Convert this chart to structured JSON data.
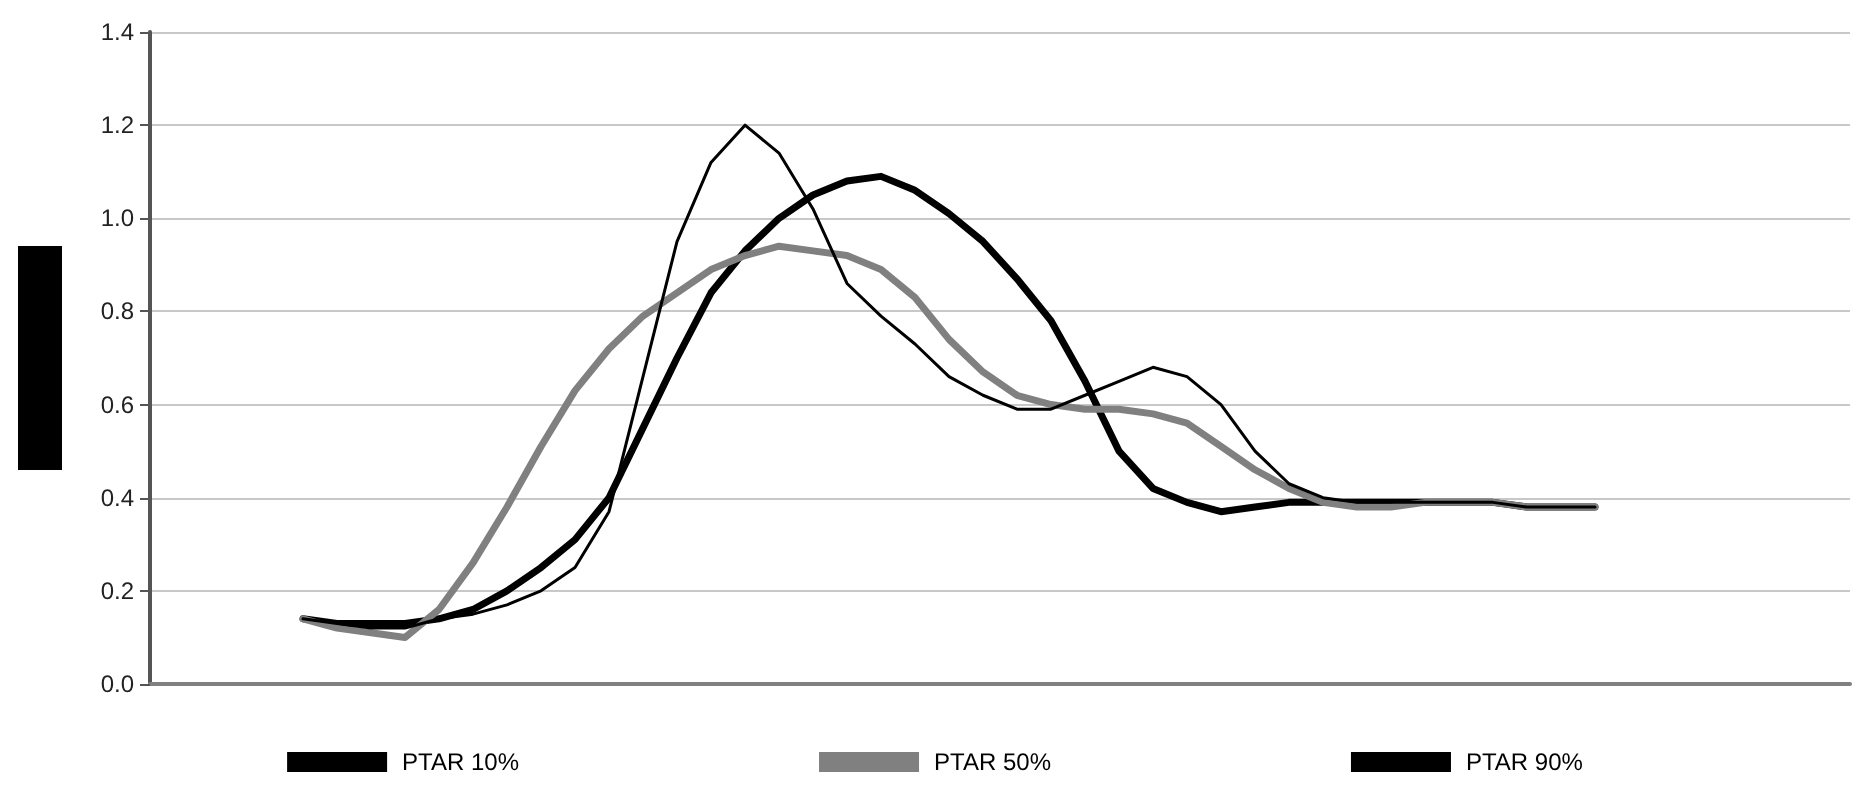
{
  "chart_data": {
    "type": "line",
    "categories": [
      null,
      null,
      null,
      null,
      null,
      null,
      null,
      null,
      null,
      null,
      null,
      null,
      null,
      null,
      null,
      null,
      null,
      null,
      null,
      null,
      null,
      null,
      null,
      null,
      null,
      null,
      null,
      null,
      null,
      null,
      null,
      null,
      null,
      null,
      null,
      null,
      null,
      null,
      null,
      null,
      null,
      null,
      null,
      null,
      null,
      null,
      null,
      null,
      null,
      null
    ],
    "series": [
      {
        "name": "PTAR 10%",
        "color": "#000000",
        "values": [
          null,
          null,
          null,
          null,
          0.14,
          0.13,
          0.13,
          0.13,
          0.14,
          0.16,
          0.2,
          0.25,
          0.31,
          0.4,
          0.55,
          0.7,
          0.84,
          0.93,
          1.0,
          1.05,
          1.08,
          1.09,
          1.06,
          1.01,
          0.95,
          0.87,
          0.78,
          0.65,
          0.5,
          0.42,
          0.39,
          0.37,
          0.38,
          0.39,
          0.39,
          0.39,
          0.39,
          0.39,
          0.39,
          0.39,
          0.38,
          0.38,
          0.38,
          null,
          null,
          null,
          null,
          null,
          null,
          null
        ]
      },
      {
        "name": "PTAR 50%",
        "color": "#808080",
        "values": [
          null,
          null,
          null,
          null,
          0.14,
          0.12,
          0.11,
          0.1,
          0.16,
          0.26,
          0.38,
          0.51,
          0.63,
          0.72,
          0.79,
          0.84,
          0.89,
          0.92,
          0.94,
          0.93,
          0.92,
          0.89,
          0.83,
          0.74,
          0.67,
          0.62,
          0.6,
          0.59,
          0.59,
          0.58,
          0.56,
          0.51,
          0.46,
          0.42,
          0.39,
          0.38,
          0.38,
          0.39,
          0.39,
          0.39,
          0.38,
          0.38,
          0.38,
          null,
          null,
          null,
          null,
          null,
          null,
          null
        ]
      },
      {
        "name": "PTAR 90%",
        "color": "#000000",
        "values": [
          null,
          null,
          null,
          null,
          0.14,
          0.13,
          0.12,
          0.12,
          0.14,
          0.15,
          0.17,
          0.2,
          0.25,
          0.37,
          0.66,
          0.95,
          1.12,
          1.2,
          1.14,
          1.02,
          0.86,
          0.79,
          0.73,
          0.66,
          0.62,
          0.59,
          0.59,
          0.62,
          0.65,
          0.68,
          0.66,
          0.6,
          0.5,
          0.43,
          0.4,
          0.39,
          0.39,
          0.39,
          0.39,
          0.39,
          0.38,
          0.38,
          0.38,
          null,
          null,
          null,
          null,
          null,
          null,
          null
        ]
      }
    ],
    "ylim": [
      0,
      1.4
    ],
    "yticks": [
      {
        "value": 0,
        "label": "0.0"
      },
      {
        "value": 0.2,
        "label": "0.2"
      },
      {
        "value": 0.4,
        "label": "0.4"
      },
      {
        "value": 0.6,
        "label": "0.6"
      },
      {
        "value": 0.8,
        "label": "0.8"
      },
      {
        "value": 1,
        "label": "1.0"
      },
      {
        "value": 1.2,
        "label": "1.2"
      },
      {
        "value": 1.4,
        "label": "1.4"
      }
    ],
    "grid": "y",
    "legend": "bottom",
    "marker": "none",
    "line_style": "solid"
  }
}
